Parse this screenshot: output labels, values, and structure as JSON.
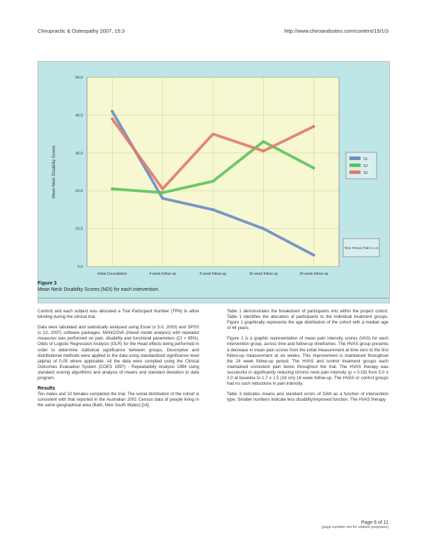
{
  "header": {
    "journal": "Chiropractic & Osteopathy 2007, 15:3",
    "url": "http://www.chiroandosteo.com/content/15/1/3"
  },
  "figure": {
    "label": "Figure 3",
    "caption": "Mean Neck Disability Scores (NDI) for each intervention."
  },
  "chart_data": {
    "type": "line",
    "title": "",
    "xlabel": "",
    "ylabel": "Mean Neck Disability Scores",
    "categories": [
      "Initial Consultation",
      "4 week follow up",
      "8 week follow up",
      "16 week follow up",
      "24 week follow up"
    ],
    "ylim": [
      0,
      50
    ],
    "ytick_labels": [
      "0.0",
      "10.0",
      "20.0",
      "30.0",
      "40.0",
      "50.0"
    ],
    "series": [
      {
        "name": "S1",
        "color": "#6b8cc7",
        "values": [
          41,
          18,
          15,
          10,
          3
        ]
      },
      {
        "name": "S2",
        "color": "#5cc25c",
        "values": [
          20.5,
          19.5,
          22.5,
          33,
          26
        ]
      },
      {
        "name": "S3",
        "color": "#e07a6a",
        "values": [
          39,
          20.5,
          35,
          30.5,
          37
        ]
      }
    ],
    "legend_position": "right",
    "note": "Time Period (Tabl 1:1 n)",
    "grid": true
  },
  "body": {
    "left_col": {
      "p1": "Control) and each subject was allocated a Trial Participant Number (TPN) to allow blinding during the clinical trial.",
      "p2": "Data were tabulated and statistically analysed using Excel (v 5.0, 2003) and SPSS (v 13, 2007) software packages. MANCOVA (mixed model analysis) with repeated measures was performed on pain, disability and functional parameters (CI = 95%). Odds of Logistic Regression Analysis (OLR) for the Head effects being performed in order to determine statistical significance between groups. Descriptive and distributional methods were applied to the data using standardized significance level (alpha) of 0.05 where applicable. All the data were compiled using the Clinical Outcomes Evaluation System (COES 1997) - Repeatability Analysis 1994 using standard scoring algorithms and analysis of means and standard deviation to data program.",
      "results_heading": "Results",
      "p3": "Ten males and 10 females completed the trial. The social distribution of the cohort is consistent with that reported in the Australian 2001 Census data of people living in the same geographical area (Bath, New South Wales) [14]."
    },
    "right_col": {
      "p1": "Table 1 demonstrates the breakdown of participants into within the project cohort. Table 1 identifies the allocation of participants to the individual treatment groups. Figure 1 graphically represents the age distribution of the cohort with a median age of 44 years.",
      "p2": "Figure 2 is a graphic representation of mean pain intensity scores (VAS) for each intervention group, across time and follow-up timeframes. The HVAS group presents a decrease in mean pain scores from the initial measurement at time zero to the first follow-up measurement at six weeks. This improvement is maintained throughout the 24 week follow-up period. The HVAS and control treatment groups each maintained consistent pain levels throughout the trial. The HVAS therapy was successful in significantly reducing chronic neck pain intensity (p = 0.03) from 5.0 ± 2.0 at baseline to 1.7 ± 1.5 (18 cm) 16 week follow-up. The HVAS or control groups had no such reductions in pain intensity.",
      "p3": "Table 3 indicates means and standard errors of DAN as a function of intervention type. Smaller numbers indicate less disability/improved function. The HVAS therapy"
    }
  },
  "footer": {
    "page": "Page 6 of 11",
    "note": "(page number not for citation purposes)"
  }
}
